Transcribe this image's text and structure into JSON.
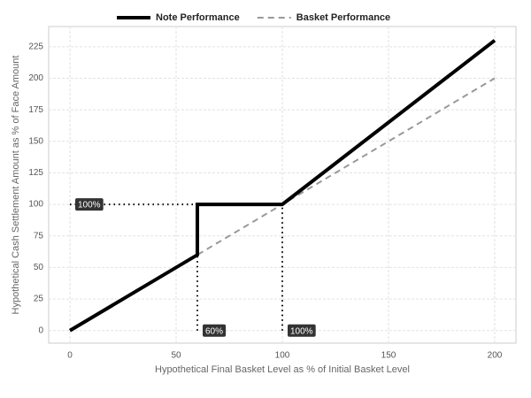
{
  "chart_data": {
    "type": "line",
    "x_label": "Hypothetical Final Basket Level as % of Initial Basket Level",
    "y_label": "Hypothetical Cash Settlement Amount as % of Face Amount",
    "series": [
      {
        "name": "Note Performance",
        "color": "#000000",
        "dash": "solid",
        "x": [
          0,
          60,
          60,
          100,
          200
        ],
        "values": [
          0,
          60,
          100,
          100,
          230
        ]
      },
      {
        "name": "Basket Performance",
        "color": "#999999",
        "dash": "dashed",
        "x": [
          0,
          200
        ],
        "values": [
          0,
          200
        ]
      }
    ],
    "reference_lines": [
      {
        "x": [
          0,
          60
        ],
        "y": [
          100,
          100
        ]
      },
      {
        "x": [
          60,
          60
        ],
        "y": [
          0,
          100
        ]
      },
      {
        "x": [
          100,
          100
        ],
        "y": [
          0,
          100
        ]
      }
    ],
    "annotations": [
      {
        "text": "100%",
        "x": 0,
        "y": 100
      },
      {
        "text": "60%",
        "x": 60,
        "y": 0
      },
      {
        "text": "100%",
        "x": 100,
        "y": 0
      }
    ],
    "xlim": [
      -10,
      210
    ],
    "ylim": [
      -10,
      241
    ],
    "xticks": [
      0,
      50,
      100,
      150,
      200
    ],
    "yticks": [
      0,
      25,
      50,
      75,
      100,
      125,
      150,
      175,
      200,
      225
    ],
    "grid": true,
    "legend": "top"
  }
}
